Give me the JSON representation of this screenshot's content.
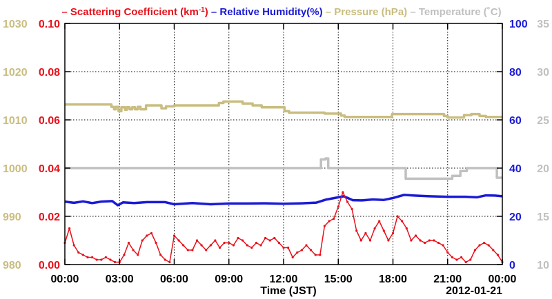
{
  "chart_data": {
    "type": "line",
    "title": {
      "parts": [
        {
          "key": "sc",
          "text": "– Scattering Coefficient (km",
          "color": "#e8101a"
        },
        {
          "key": "sc_sup",
          "text": "-1",
          "color": "#e8101a",
          "sup": true
        },
        {
          "key": "sc_close",
          "text": ")",
          "color": "#e8101a"
        },
        {
          "key": "rh",
          "text": " – Relative Humidity(%)",
          "color": "#1a1ad6"
        },
        {
          "key": "pr",
          "text": " – Pressure (hPa)",
          "color": "#c9bd80"
        },
        {
          "key": "tp",
          "text": " – Temperature (˚C)",
          "color": "#c0c0c0"
        }
      ]
    },
    "xlabel": "Time (JST)",
    "date_label": "2012-01-21",
    "x_ticks": [
      "00:00",
      "03:00",
      "06:00",
      "09:00",
      "12:00",
      "15:00",
      "18:00",
      "21:00",
      "00:00"
    ],
    "xlim_hours": [
      0,
      24
    ],
    "grid": true,
    "axes": {
      "left_outer": {
        "label_color": "#c9bd80",
        "ylim": [
          980,
          1030
        ],
        "ticks": [
          "980",
          "990",
          "1000",
          "1010",
          "1020",
          "1030"
        ]
      },
      "left_inner": {
        "label_color": "#e8101a",
        "ylim": [
          0,
          0.1
        ],
        "ticks": [
          "0.00",
          "0.02",
          "0.04",
          "0.06",
          "0.08",
          "0.10"
        ]
      },
      "right_inner": {
        "label_color": "#1a1ad6",
        "ylim": [
          0,
          100
        ],
        "ticks": [
          "0",
          "20",
          "40",
          "60",
          "80",
          "100"
        ]
      },
      "right_outer": {
        "label_color": "#c0c0c0",
        "ylim": [
          10,
          35
        ],
        "ticks": [
          "10",
          "15",
          "20",
          "25",
          "30",
          "35"
        ]
      }
    },
    "series": [
      {
        "key": "pressure",
        "axis": "left_outer",
        "color": "#c9bd80",
        "step": true,
        "x": [
          0,
          2.55,
          2.7,
          2.8,
          2.95,
          3.1,
          3.3,
          3.4,
          3.55,
          3.7,
          3.85,
          4.0,
          4.15,
          4.45,
          5.3,
          5.55,
          6.0,
          8.45,
          8.7,
          9.75,
          10.3,
          10.8,
          12.05,
          12.3,
          14.1,
          14.25,
          15.15,
          15.35,
          17.95,
          18.1,
          20.8,
          21.0,
          21.9,
          22.3,
          22.75,
          23.1,
          24
        ],
        "y": [
          1013.2,
          1012.7,
          1012.2,
          1012.7,
          1011.8,
          1012.6,
          1012.1,
          1012.6,
          1012.2,
          1012.6,
          1012.2,
          1012.7,
          1012.2,
          1013.0,
          1012.4,
          1012.8,
          1013.0,
          1013.5,
          1013.8,
          1013.4,
          1013.0,
          1012.6,
          1011.8,
          1011.5,
          1011.5,
          1011.3,
          1010.9,
          1010.6,
          1011.2,
          1011.2,
          1010.8,
          1010.5,
          1011.0,
          1011.2,
          1010.8,
          1010.6,
          1010.6
        ]
      },
      {
        "key": "temperature",
        "axis": "right_outer",
        "color": "#c0c0c0",
        "step": true,
        "x": [
          0,
          13.95,
          14.05,
          14.3,
          14.45,
          18.6,
          18.7,
          21.0,
          21.25,
          21.7,
          22.05,
          22.5,
          23.4,
          23.7,
          24
        ],
        "y": [
          20.0,
          20.0,
          20.9,
          21.0,
          20.0,
          20.0,
          18.9,
          18.9,
          19.2,
          19.7,
          20.0,
          20.0,
          20.0,
          19.0,
          19.0
        ]
      },
      {
        "key": "relative_humidity",
        "axis": "right_inner",
        "color": "#1a1ad6",
        "step": false,
        "x": [
          0,
          0.5,
          1.0,
          1.5,
          2.0,
          2.6,
          2.9,
          3.2,
          3.8,
          4.5,
          5.5,
          6.0,
          7.0,
          8.0,
          9.0,
          10.0,
          11.0,
          12.0,
          13.0,
          13.8,
          14.3,
          14.8,
          15.3,
          15.8,
          16.3,
          16.9,
          17.5,
          18.0,
          18.6,
          19.2,
          20.0,
          21.0,
          22.0,
          22.6,
          23.1,
          23.6,
          24
        ],
        "y": [
          26.1,
          25.6,
          26.2,
          25.5,
          26.1,
          26.3,
          24.6,
          25.8,
          25.5,
          25.9,
          25.9,
          25.0,
          25.5,
          25.0,
          25.3,
          25.3,
          25.4,
          25.2,
          25.4,
          25.7,
          26.9,
          27.6,
          28.3,
          26.7,
          26.6,
          27.0,
          26.8,
          27.6,
          28.9,
          28.6,
          28.3,
          28.1,
          28.1,
          27.9,
          28.7,
          28.6,
          28.3
        ]
      },
      {
        "key": "scattering",
        "axis": "left_inner",
        "color": "#e8101a",
        "step": false,
        "markers": true,
        "x": [
          0,
          0.25,
          0.5,
          0.75,
          1.0,
          1.25,
          1.5,
          1.75,
          2.0,
          2.25,
          2.5,
          2.75,
          3.0,
          3.25,
          3.5,
          3.75,
          4.0,
          4.25,
          4.5,
          4.75,
          5.0,
          5.25,
          5.5,
          5.75,
          6.0,
          6.25,
          6.5,
          6.75,
          7.0,
          7.25,
          7.5,
          7.75,
          8.0,
          8.25,
          8.5,
          8.75,
          9.0,
          9.25,
          9.5,
          9.75,
          10.0,
          10.25,
          10.5,
          10.75,
          11.0,
          11.25,
          11.5,
          11.75,
          12.0,
          12.25,
          12.5,
          12.75,
          13.0,
          13.25,
          13.5,
          13.75,
          14.0,
          14.25,
          14.5,
          14.75,
          15.0,
          15.25,
          15.5,
          15.75,
          16.0,
          16.25,
          16.5,
          16.75,
          17.0,
          17.25,
          17.5,
          17.75,
          18.0,
          18.25,
          18.5,
          18.75,
          19.0,
          19.25,
          19.5,
          19.75,
          20.0,
          20.25,
          20.5,
          20.75,
          21.0,
          21.25,
          21.5,
          21.75,
          22.0,
          22.25,
          22.5,
          22.75,
          23.0,
          23.25,
          23.5,
          23.75,
          24.0
        ],
        "y": [
          0.009,
          0.015,
          0.008,
          0.005,
          0.004,
          0.003,
          0.003,
          0.002,
          0.002,
          0.003,
          0.002,
          0.001,
          0.001,
          0.004,
          0.009,
          0.006,
          0.004,
          0.01,
          0.012,
          0.013,
          0.009,
          0.004,
          0.002,
          0.001,
          0.012,
          0.01,
          0.008,
          0.006,
          0.006,
          0.01,
          0.008,
          0.006,
          0.008,
          0.01,
          0.007,
          0.009,
          0.009,
          0.008,
          0.011,
          0.01,
          0.008,
          0.007,
          0.009,
          0.008,
          0.011,
          0.01,
          0.011,
          0.009,
          0.007,
          0.007,
          0.003,
          0.005,
          0.006,
          0.008,
          0.006,
          0.004,
          0.004,
          0.016,
          0.018,
          0.019,
          0.024,
          0.03,
          0.026,
          0.023,
          0.014,
          0.01,
          0.013,
          0.01,
          0.015,
          0.018,
          0.014,
          0.01,
          0.013,
          0.02,
          0.018,
          0.015,
          0.01,
          0.012,
          0.01,
          0.009,
          0.01,
          0.01,
          0.009,
          0.008,
          0.005,
          0.003,
          0.002,
          0.003,
          0.001,
          0.002,
          0.006,
          0.008,
          0.009,
          0.008,
          0.006,
          0.004,
          0.001
        ]
      }
    ]
  }
}
